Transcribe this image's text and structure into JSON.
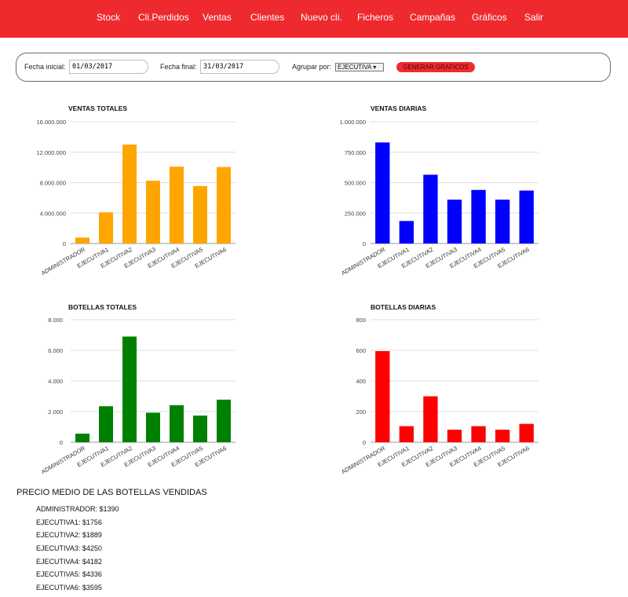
{
  "nav": {
    "items": [
      {
        "label": "Stock"
      },
      {
        "label": "Cli.Perdidos"
      },
      {
        "label": "Ventas"
      },
      {
        "label": "Clientes"
      },
      {
        "label": "Nuevo cli."
      },
      {
        "label": "Ficheros"
      },
      {
        "label": "Campañas"
      },
      {
        "label": "Gráficos"
      },
      {
        "label": "Salir"
      }
    ],
    "background_color": "#ef2a2f"
  },
  "filters": {
    "start_label": "Fecha inicial:",
    "start_value": "01/03/2017",
    "end_label": "Fecha final:",
    "end_value": "31/03/2017",
    "group_label": "Agrupar por:",
    "group_value": "EJECUTIVA ▾",
    "generate_button": "GENERAR GRAFICOS"
  },
  "chart_data": [
    {
      "type": "bar",
      "title": "VENTAS TOTALES",
      "categories": [
        "ADMINISTRADOR",
        "EJECUTIVA1",
        "EJECUTIVA2",
        "EJECUTIVA3",
        "EJECUTIVA4",
        "EJECUTIVA5",
        "EJECUTIVA6"
      ],
      "values": [
        780000,
        4100000,
        13000000,
        8250000,
        10100000,
        7550000,
        10050000
      ],
      "ylim": [
        0,
        16000000
      ],
      "yticks": [
        0,
        4000000,
        8000000,
        12000000,
        16000000
      ],
      "ytick_labels": [
        "0",
        "4.000.000",
        "8.000.000",
        "12.000.000",
        "16.000.000"
      ],
      "color": "#ffa500",
      "grid": true,
      "xlabel": "",
      "ylabel": ""
    },
    {
      "type": "bar",
      "title": "VENTAS DIARIAS",
      "categories": [
        "ADMINISTRADOR",
        "EJECUTIVA1",
        "EJECUTIVA2",
        "EJECUTIVA3",
        "EJECUTIVA4",
        "EJECUTIVA5",
        "EJECUTIVA6"
      ],
      "values": [
        830000,
        185000,
        565000,
        360000,
        440000,
        360000,
        435000
      ],
      "ylim": [
        0,
        1000000
      ],
      "yticks": [
        0,
        250000,
        500000,
        750000,
        1000000
      ],
      "ytick_labels": [
        "0",
        "250.000",
        "500.000",
        "750.000",
        "1.000.000"
      ],
      "color": "#0000ff",
      "grid": true,
      "xlabel": "",
      "ylabel": ""
    },
    {
      "type": "bar",
      "title": "BOTELLAS TOTALES",
      "categories": [
        "ADMINISTRADOR",
        "EJECUTIVA1",
        "EJECUTIVA2",
        "EJECUTIVA3",
        "EJECUTIVA4",
        "EJECUTIVA5",
        "EJECUTIVA6"
      ],
      "values": [
        560,
        2350,
        6900,
        1930,
        2420,
        1740,
        2780
      ],
      "ylim": [
        0,
        8000
      ],
      "yticks": [
        0,
        2000,
        4000,
        6000,
        8000
      ],
      "ytick_labels": [
        "0",
        "2.000",
        "4.000",
        "6.000",
        "8.000"
      ],
      "color": "#008000",
      "grid": true,
      "xlabel": "",
      "ylabel": ""
    },
    {
      "type": "bar",
      "title": "BOTELLAS DIARIAS",
      "categories": [
        "ADMINISTRADOR",
        "EJECUTIVA1",
        "EJECUTIVA2",
        "EJECUTIVA3",
        "EJECUTIVA4",
        "EJECUTIVA5",
        "EJECUTIVA6"
      ],
      "values": [
        595,
        105,
        300,
        82,
        105,
        82,
        120
      ],
      "ylim": [
        0,
        800
      ],
      "yticks": [
        0,
        200,
        400,
        600,
        800
      ],
      "ytick_labels": [
        "0",
        "200",
        "400",
        "600",
        "800"
      ],
      "color": "#ff0000",
      "grid": true,
      "xlabel": "",
      "ylabel": ""
    }
  ],
  "average": {
    "title": "PRECIO MEDIO DE LAS BOTELLAS VENDIDAS",
    "items": [
      "ADMINISTRADOR: $1390",
      "EJECUTIVA1: $1756",
      "EJECUTIVA2: $1889",
      "EJECUTIVA3: $4250",
      "EJECUTIVA4: $4182",
      "EJECUTIVA5: $4336",
      "EJECUTIVA6: $3595"
    ]
  }
}
